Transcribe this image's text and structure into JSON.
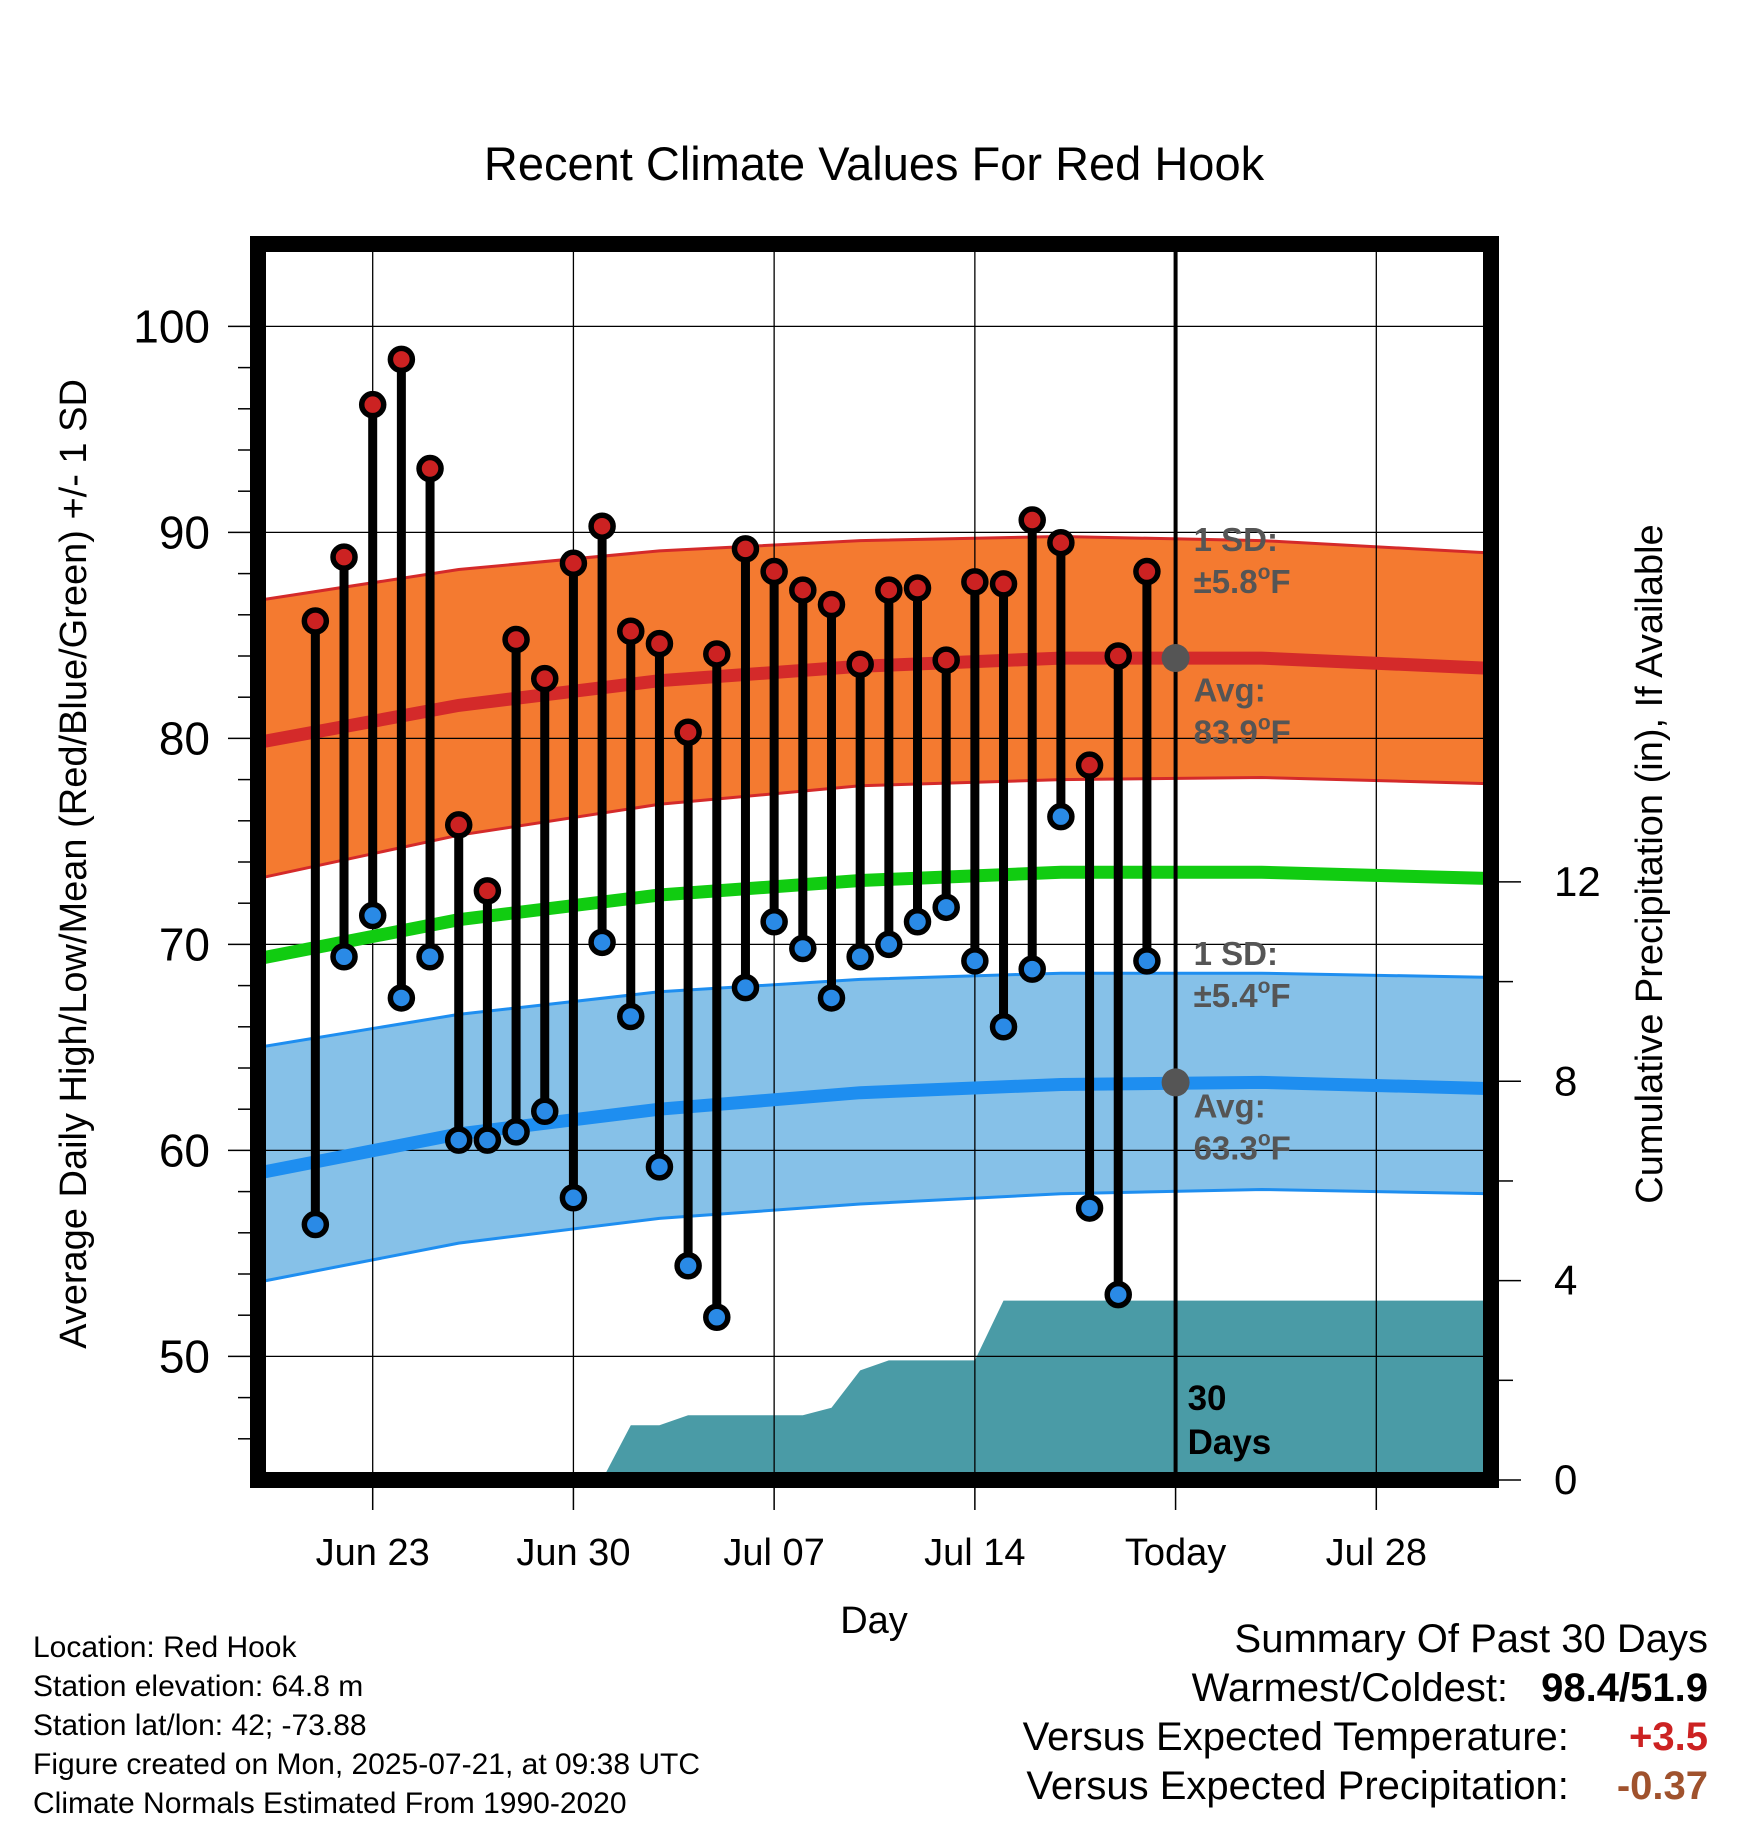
{
  "chart_data": {
    "type": "line",
    "title": "Recent Climate Values For Red Hook",
    "xlabel": "Day",
    "ylabel": "Average Daily High/Low/Mean (Red/Blue/Green) +/- 1 SD",
    "ylabel_right": "Cumulative Precipitation (in), If Available",
    "ylim": [
      44,
      104
    ],
    "ylim_right": [
      0,
      24.8
    ],
    "x_range": [
      "2025-06-19",
      "2025-08-01"
    ],
    "x_tick_labels": [
      {
        "date": "2025-06-23",
        "label": "Jun 23"
      },
      {
        "date": "2025-06-30",
        "label": "Jun 30"
      },
      {
        "date": "2025-07-07",
        "label": "Jul 07"
      },
      {
        "date": "2025-07-14",
        "label": "Jul 14"
      },
      {
        "date": "2025-07-21",
        "label": "Today"
      },
      {
        "date": "2025-07-28",
        "label": "Jul 28"
      }
    ],
    "y_ticks": [
      50,
      60,
      70,
      80,
      90,
      100
    ],
    "y_right_ticks": [
      0,
      4,
      8,
      12
    ],
    "grid": true,
    "today": "2025-07-21",
    "today_label": [
      "30",
      "Days"
    ],
    "dates": [
      "2025-06-21",
      "2025-06-22",
      "2025-06-23",
      "2025-06-24",
      "2025-06-25",
      "2025-06-26",
      "2025-06-27",
      "2025-06-28",
      "2025-06-29",
      "2025-06-30",
      "2025-07-01",
      "2025-07-02",
      "2025-07-03",
      "2025-07-04",
      "2025-07-05",
      "2025-07-06",
      "2025-07-07",
      "2025-07-08",
      "2025-07-09",
      "2025-07-10",
      "2025-07-11",
      "2025-07-12",
      "2025-07-13",
      "2025-07-14",
      "2025-07-15",
      "2025-07-16",
      "2025-07-17",
      "2025-07-18",
      "2025-07-19",
      "2025-07-20"
    ],
    "series": [
      {
        "name": "High",
        "color": "#cc2222",
        "values": [
          85.7,
          88.8,
          96.2,
          98.4,
          93.1,
          75.8,
          72.6,
          84.8,
          82.9,
          88.5,
          90.3,
          85.2,
          84.6,
          80.3,
          84.1,
          89.2,
          88.1,
          87.2,
          86.5,
          83.6,
          87.2,
          87.3,
          83.8,
          87.6,
          87.5,
          90.6,
          89.5,
          78.7,
          84.0,
          88.1
        ]
      },
      {
        "name": "Low",
        "color": "#2a8ae6",
        "values": [
          56.4,
          69.4,
          71.4,
          67.4,
          69.4,
          60.5,
          60.5,
          60.9,
          61.9,
          57.7,
          70.1,
          66.5,
          59.2,
          54.4,
          51.9,
          67.9,
          71.1,
          69.8,
          67.4,
          69.4,
          70.0,
          71.1,
          71.8,
          69.2,
          66.0,
          68.8,
          76.2,
          57.2,
          53.0,
          69.2
        ]
      }
    ],
    "normals": {
      "high_avg_color": "#d42a2a",
      "high_band_color": "#f47a30",
      "low_avg_color": "#1e8ef0",
      "low_band_color": "#86c1e8",
      "mean_color": "#11cc11",
      "dates": [
        "2025-06-19",
        "2025-06-26",
        "2025-07-03",
        "2025-07-10",
        "2025-07-17",
        "2025-07-24",
        "2025-08-01"
      ],
      "high_avg": [
        79.8,
        81.6,
        82.8,
        83.5,
        83.9,
        83.9,
        83.4
      ],
      "high_sd_upper": [
        86.7,
        88.2,
        89.1,
        89.6,
        89.8,
        89.6,
        89.0
      ],
      "high_sd_lower": [
        73.2,
        75.3,
        76.8,
        77.7,
        78.0,
        78.1,
        77.8
      ],
      "low_avg": [
        58.9,
        60.8,
        62.0,
        62.8,
        63.2,
        63.3,
        63.0
      ],
      "low_sd_upper": [
        65.0,
        66.6,
        67.7,
        68.3,
        68.6,
        68.6,
        68.4
      ],
      "low_sd_lower": [
        53.6,
        55.5,
        56.7,
        57.4,
        57.9,
        58.1,
        57.9
      ],
      "mean": [
        69.3,
        71.2,
        72.4,
        73.1,
        73.5,
        73.5,
        73.2
      ]
    },
    "precip_color": "#4a9ba6",
    "precip_cumulative": {
      "dates": [
        "2025-06-29",
        "2025-06-30",
        "2025-07-01",
        "2025-07-02",
        "2025-07-03",
        "2025-07-04",
        "2025-07-05",
        "2025-07-06",
        "2025-07-07",
        "2025-07-08",
        "2025-07-09",
        "2025-07-10",
        "2025-07-11",
        "2025-07-12",
        "2025-07-13",
        "2025-07-14",
        "2025-07-15",
        "2025-07-16",
        "2025-07-17",
        "2025-07-18",
        "2025-07-19",
        "2025-07-20",
        "2025-07-21",
        "2025-08-01"
      ],
      "values": [
        0,
        0,
        0,
        1.1,
        1.1,
        1.3,
        1.3,
        1.3,
        1.3,
        1.3,
        1.45,
        2.2,
        2.4,
        2.4,
        2.4,
        2.4,
        3.6,
        3.6,
        3.6,
        3.6,
        3.6,
        3.6,
        3.6,
        3.6
      ]
    },
    "annotations": {
      "high_sd": [
        "1 SD:",
        "±5.8",
        "F"
      ],
      "high_avg": [
        "Avg:",
        "83.9",
        "F"
      ],
      "low_sd": [
        "1 SD:",
        "±5.4",
        "F"
      ],
      "low_avg": [
        "Avg:",
        "63.3",
        "F"
      ],
      "degree": "o",
      "color": "#555555"
    }
  },
  "info": {
    "location": "Location: Red Hook",
    "elevation": "Station elevation: 64.8 m",
    "latlon": "Station lat/lon: 42; -73.88",
    "created": "Figure created on Mon, 2025-07-21, at 09:38 UTC",
    "normals": "Climate Normals Estimated From 1990-2020"
  },
  "summary": {
    "title": "Summary Of Past 30 Days",
    "warm_cold_label": "Warmest/Coldest:",
    "warm_cold_value": "98.4/51.9",
    "temp_label": "Versus Expected Temperature:",
    "temp_value": "+3.5",
    "temp_color": "#cc2222",
    "precip_label": "Versus Expected Precipitation:",
    "precip_value": "-0.37",
    "precip_color": "#a0522d"
  }
}
